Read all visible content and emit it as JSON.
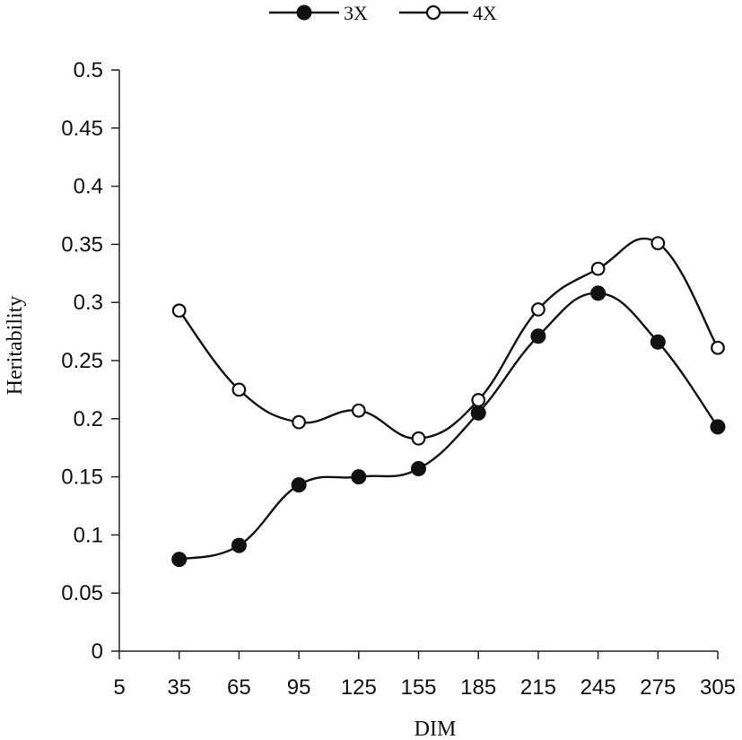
{
  "chart_data": {
    "type": "line",
    "xlabel": "DIM",
    "ylabel": "Heritability",
    "xlim": [
      5,
      305
    ],
    "ylim": [
      0,
      0.5
    ],
    "x_ticks": [
      "5",
      "35",
      "65",
      "95",
      "125",
      "155",
      "185",
      "215",
      "245",
      "275",
      "305"
    ],
    "y_ticks": [
      "0",
      "0.05",
      "0.1",
      "0.15",
      "0.2",
      "0.25",
      "0.3",
      "0.35",
      "0.4",
      "0.45",
      "0.5"
    ],
    "x": [
      35,
      65,
      95,
      125,
      155,
      185,
      215,
      245,
      275,
      305
    ],
    "series": [
      {
        "name": "3X",
        "marker": "filled-circle",
        "values": [
          0.079,
          0.091,
          0.143,
          0.15,
          0.157,
          0.205,
          0.271,
          0.308,
          0.266,
          0.193
        ]
      },
      {
        "name": "4X",
        "marker": "open-circle",
        "values": [
          0.293,
          0.225,
          0.197,
          0.207,
          0.183,
          0.216,
          0.294,
          0.329,
          0.351,
          0.261
        ]
      }
    ],
    "grid": false,
    "legend_position": "top-center",
    "line_color": "#111111"
  }
}
